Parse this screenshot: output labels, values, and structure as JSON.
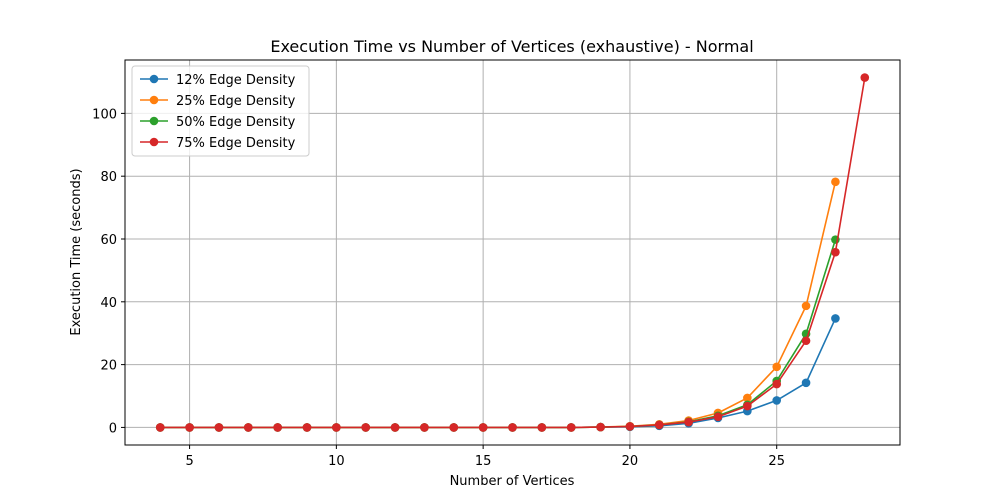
{
  "chart_data": {
    "type": "line",
    "title": "Execution Time vs Number of Vertices (exhaustive) - Normal",
    "xlabel": "Number of Vertices",
    "ylabel": "Execution Time (seconds)",
    "xlim": [
      2.8,
      29.2
    ],
    "ylim": [
      -5.6,
      117
    ],
    "xticks": [
      5,
      10,
      15,
      20,
      25
    ],
    "yticks": [
      0,
      20,
      40,
      60,
      80,
      100
    ],
    "grid": true,
    "legend_position": "top-left",
    "series": [
      {
        "name": "12% Edge Density",
        "color": "#1f77b4",
        "x": [
          4,
          5,
          6,
          7,
          8,
          9,
          10,
          11,
          12,
          13,
          14,
          15,
          16,
          17,
          18,
          19,
          20,
          21,
          22,
          23,
          24,
          25,
          26,
          27
        ],
        "y": [
          0,
          0,
          0,
          0,
          0,
          0,
          0,
          0,
          0,
          0,
          0,
          0,
          0,
          0,
          0,
          0.1,
          0.2,
          0.5,
          1.3,
          3.0,
          5.2,
          8.6,
          14.2,
          34.7
        ]
      },
      {
        "name": "25% Edge Density",
        "color": "#ff7f0e",
        "x": [
          4,
          5,
          6,
          7,
          8,
          9,
          10,
          11,
          12,
          13,
          14,
          15,
          16,
          17,
          18,
          19,
          20,
          21,
          22,
          23,
          24,
          25,
          26,
          27
        ],
        "y": [
          0,
          0,
          0,
          0,
          0,
          0,
          0,
          0,
          0,
          0,
          0,
          0,
          0,
          0,
          0,
          0.1,
          0.4,
          1.0,
          2.2,
          4.6,
          9.4,
          19.3,
          38.7,
          78.2
        ]
      },
      {
        "name": "50% Edge Density",
        "color": "#2ca02c",
        "x": [
          4,
          5,
          6,
          7,
          8,
          9,
          10,
          11,
          12,
          13,
          14,
          15,
          16,
          17,
          18,
          19,
          20,
          21,
          22,
          23,
          24,
          25,
          26,
          27
        ],
        "y": [
          0,
          0,
          0,
          0,
          0,
          0,
          0,
          0,
          0,
          0,
          0,
          0,
          0,
          0,
          0,
          0.1,
          0.3,
          0.8,
          1.8,
          3.7,
          7.2,
          14.8,
          29.8,
          59.8
        ]
      },
      {
        "name": "75% Edge Density",
        "color": "#d62728",
        "x": [
          4,
          5,
          6,
          7,
          8,
          9,
          10,
          11,
          12,
          13,
          14,
          15,
          16,
          17,
          18,
          19,
          20,
          21,
          22,
          23,
          24,
          25,
          26,
          27,
          28
        ],
        "y": [
          0,
          0,
          0,
          0,
          0,
          0,
          0,
          0,
          0,
          0,
          0,
          0,
          0,
          0,
          0,
          0.1,
          0.3,
          0.8,
          1.7,
          3.4,
          6.8,
          13.8,
          27.6,
          55.8,
          111.4
        ]
      }
    ]
  }
}
